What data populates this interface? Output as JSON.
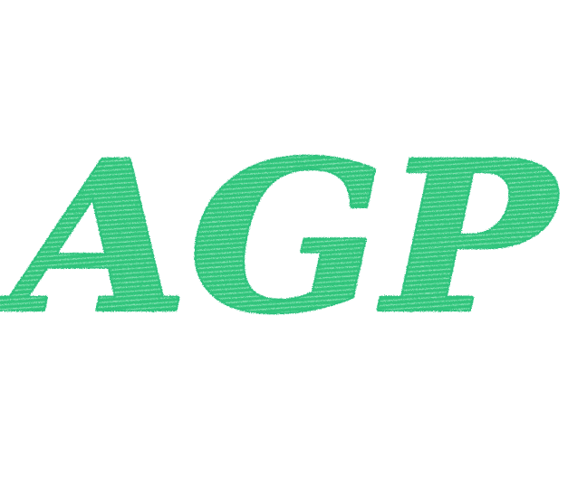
{
  "logo": {
    "text": "AGP",
    "color": "#2ec27e",
    "background": "#ffffff",
    "style": "sketch-hatched"
  }
}
